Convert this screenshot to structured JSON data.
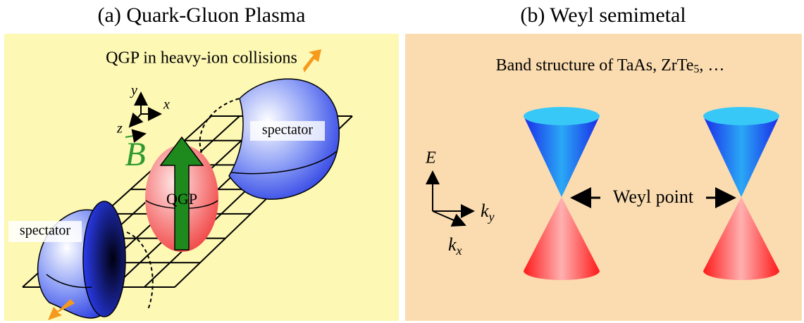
{
  "panel_a": {
    "title": "(a) Quark-Gluon Plasma",
    "subtitle": "QGP in heavy-ion collisions",
    "axes": {
      "y": "y",
      "x": "x",
      "z": "z"
    },
    "field": "B",
    "spectator_top": "spectator",
    "spectator_bottom": "spectator",
    "center": "QGP"
  },
  "panel_b": {
    "title": "(b) Weyl semimetal",
    "subtitle_start": "Band structure of TaAs, ZrTe",
    "subtitle_sub": "5",
    "subtitle_end": ", …",
    "energy_axis": "E",
    "ky": {
      "symbol": "k",
      "subscript": "y"
    },
    "kx": {
      "symbol": "k",
      "subscript": "x"
    },
    "point_label": "Weyl point"
  }
}
